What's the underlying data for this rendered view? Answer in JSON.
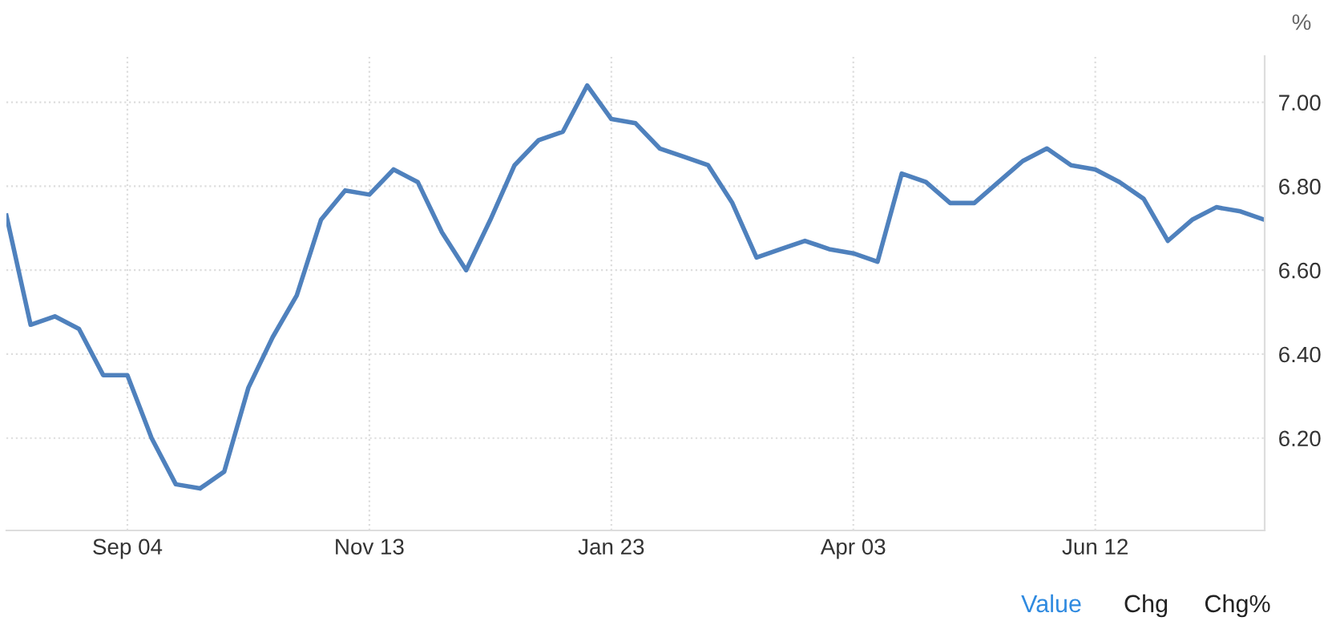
{
  "chart_data": {
    "type": "line",
    "ylabel": "%",
    "annotations": [
      "Value",
      "Chg",
      "Chg%"
    ],
    "categories": [
      null,
      null,
      null,
      null,
      null,
      "Sep 04",
      null,
      null,
      null,
      null,
      null,
      null,
      null,
      null,
      null,
      "Nov 13",
      null,
      null,
      null,
      null,
      null,
      null,
      null,
      null,
      null,
      "Jan 23",
      null,
      null,
      null,
      null,
      null,
      null,
      null,
      null,
      null,
      "Apr 03",
      null,
      null,
      null,
      null,
      null,
      null,
      null,
      null,
      null,
      "Jun 12",
      null,
      null,
      null,
      null,
      null,
      null,
      null
    ],
    "series": [
      {
        "color": "#4f81bd",
        "values": [
          6.73,
          6.47,
          6.49,
          6.46,
          6.35,
          6.35,
          6.2,
          6.09,
          6.08,
          6.12,
          6.32,
          6.44,
          6.54,
          6.72,
          6.79,
          6.78,
          6.84,
          6.81,
          6.69,
          6.6,
          6.72,
          6.85,
          6.91,
          6.93,
          7.04,
          6.96,
          6.95,
          6.89,
          6.87,
          6.85,
          6.76,
          6.63,
          6.65,
          6.67,
          6.65,
          6.64,
          6.62,
          6.83,
          6.81,
          6.76,
          6.76,
          6.81,
          6.86,
          6.89,
          6.85,
          6.84,
          6.81,
          6.77,
          6.67,
          6.72,
          6.75,
          6.74,
          6.72
        ]
      }
    ],
    "ylim": [
      5.98,
      7.11
    ],
    "yticks": [
      {
        "value": 6.2,
        "label": "6.20"
      },
      {
        "value": 6.4,
        "label": "6.40"
      },
      {
        "value": 6.6,
        "label": "6.60"
      },
      {
        "value": 6.8,
        "label": "6.80"
      },
      {
        "value": 7.0,
        "label": "7.00"
      }
    ],
    "grid": true,
    "line_style": "solid",
    "marker": "none",
    "legend": false
  }
}
